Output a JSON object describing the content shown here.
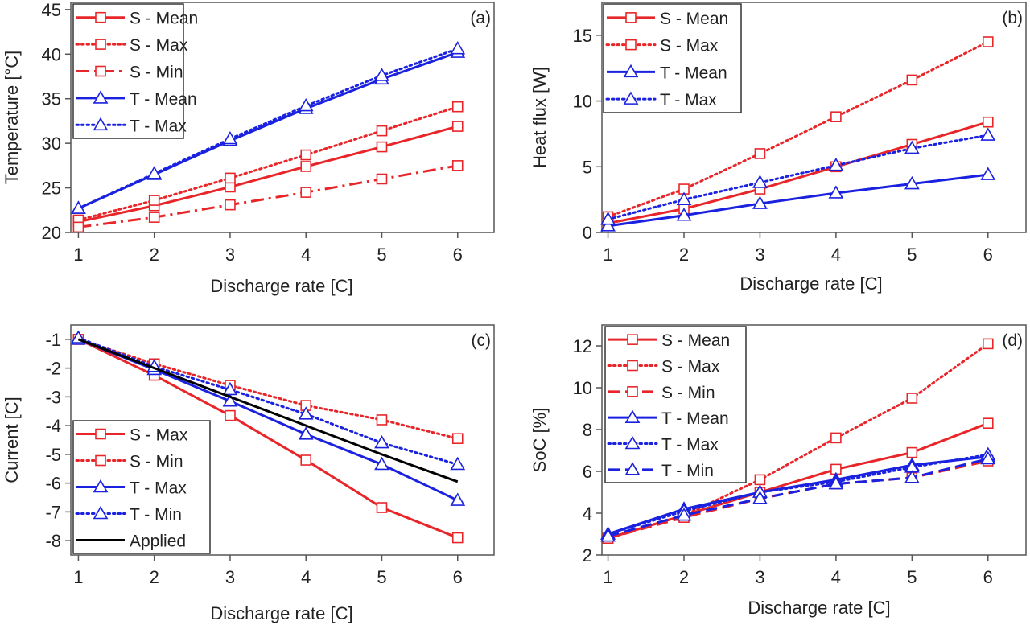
{
  "colors": {
    "S": "#e8262a",
    "T": "#1a22e0",
    "Applied": "#000000"
  },
  "chart_data": [
    {
      "type": "line",
      "panel_label": "(a)",
      "xlabel": "Discharge rate [C]",
      "ylabel": "Temperature [°C]",
      "xlim": [
        0.9,
        6.48
      ],
      "ylim": [
        20,
        45.8
      ],
      "xticks": [
        1,
        2,
        3,
        4,
        5,
        6
      ],
      "yticks": [
        20,
        25,
        30,
        35,
        40,
        45
      ],
      "grid": false,
      "legend": "top-left",
      "x": [
        1,
        2,
        3,
        4,
        5,
        6
      ],
      "series": [
        {
          "name": "S - Mean",
          "group": "S",
          "style": "solid",
          "marker": "square",
          "values": [
            21.2,
            23.0,
            25.1,
            27.4,
            29.6,
            31.9
          ]
        },
        {
          "name": "S - Max",
          "group": "S",
          "style": "dotted",
          "marker": "square",
          "values": [
            21.4,
            23.6,
            26.1,
            28.7,
            31.4,
            34.1
          ]
        },
        {
          "name": "S - Min",
          "group": "S",
          "style": "dashdot",
          "marker": "square",
          "values": [
            20.6,
            21.7,
            23.1,
            24.5,
            26.0,
            27.5
          ]
        },
        {
          "name": "T - Mean",
          "group": "T",
          "style": "solid",
          "marker": "triangle",
          "values": [
            22.7,
            26.5,
            30.3,
            33.9,
            37.2,
            40.2
          ]
        },
        {
          "name": "T - Max",
          "group": "T",
          "style": "dotted",
          "marker": "triangle",
          "values": [
            22.7,
            26.6,
            30.5,
            34.2,
            37.6,
            40.6
          ]
        }
      ]
    },
    {
      "type": "line",
      "panel_label": "(b)",
      "xlabel": "Discharge rate [C]",
      "ylabel": "Heat flux [W]",
      "xlim": [
        0.92,
        6.5
      ],
      "ylim": [
        0,
        17.5
      ],
      "xticks": [
        1,
        2,
        3,
        4,
        5,
        6
      ],
      "yticks": [
        0,
        5,
        10,
        15
      ],
      "grid": false,
      "legend": "top-left",
      "x": [
        1,
        2,
        3,
        4,
        5,
        6
      ],
      "series": [
        {
          "name": "S - Mean",
          "group": "S",
          "style": "solid",
          "marker": "square",
          "values": [
            0.7,
            1.8,
            3.3,
            5.0,
            6.7,
            8.4
          ]
        },
        {
          "name": "S - Max",
          "group": "S",
          "style": "dotted",
          "marker": "square",
          "values": [
            1.2,
            3.3,
            6.0,
            8.8,
            11.6,
            14.5
          ]
        },
        {
          "name": "T - Mean",
          "group": "T",
          "style": "solid",
          "marker": "triangle",
          "values": [
            0.5,
            1.3,
            2.2,
            3.0,
            3.7,
            4.4
          ]
        },
        {
          "name": "T - Max",
          "group": "T",
          "style": "dotted",
          "marker": "triangle",
          "values": [
            1.0,
            2.5,
            3.8,
            5.1,
            6.4,
            7.4
          ]
        }
      ]
    },
    {
      "type": "line",
      "panel_label": "(c)",
      "xlabel": "Discharge rate [C]",
      "ylabel": "Current [C]",
      "xlim": [
        0.9,
        6.48
      ],
      "ylim": [
        -8.5,
        -0.5
      ],
      "xticks": [
        1,
        2,
        3,
        4,
        5,
        6
      ],
      "yticks": [
        -1,
        -2,
        -3,
        -4,
        -5,
        -6,
        -7,
        -8
      ],
      "grid": false,
      "legend": "bottom-left",
      "x": [
        1,
        2,
        3,
        4,
        5,
        6
      ],
      "series": [
        {
          "name": "S - Max",
          "group": "S",
          "style": "solid",
          "marker": "square",
          "values": [
            -1.0,
            -2.25,
            -3.65,
            -5.2,
            -6.85,
            -7.9
          ]
        },
        {
          "name": "S - Min",
          "group": "S",
          "style": "dotted",
          "marker": "square",
          "values": [
            -1.0,
            -1.85,
            -2.6,
            -3.3,
            -3.8,
            -4.45
          ]
        },
        {
          "name": "T - Max",
          "group": "T",
          "style": "solid",
          "marker": "triangle",
          "values": [
            -1.0,
            -2.05,
            -3.15,
            -4.3,
            -5.35,
            -6.6
          ]
        },
        {
          "name": "T - Min",
          "group": "T",
          "style": "dotted",
          "marker": "triangle",
          "values": [
            -0.95,
            -1.95,
            -2.75,
            -3.6,
            -4.6,
            -5.35
          ]
        },
        {
          "name": "Applied",
          "group": "Applied",
          "style": "solid",
          "marker": "none",
          "values": [
            -1,
            -2,
            -3,
            -4,
            -5,
            -5.95
          ]
        }
      ]
    },
    {
      "type": "line",
      "panel_label": "(d)",
      "xlabel": "Discharge rate [C]",
      "ylabel": "SoC [%]",
      "xlim": [
        0.92,
        6.5
      ],
      "ylim": [
        2,
        13
      ],
      "xticks": [
        1,
        2,
        3,
        4,
        5,
        6
      ],
      "yticks": [
        2,
        4,
        6,
        8,
        10,
        12
      ],
      "grid": false,
      "legend": "top-left",
      "x": [
        1,
        2,
        3,
        4,
        5,
        6
      ],
      "series": [
        {
          "name": "S - Mean",
          "group": "S",
          "style": "solid",
          "marker": "square",
          "values": [
            2.8,
            3.9,
            5.0,
            6.1,
            6.9,
            8.3
          ]
        },
        {
          "name": "S - Max",
          "group": "S",
          "style": "dotted",
          "marker": "square",
          "values": [
            2.8,
            3.9,
            5.6,
            7.6,
            9.5,
            12.1
          ]
        },
        {
          "name": "S - Min",
          "group": "S",
          "style": "dashed",
          "marker": "square",
          "values": [
            2.8,
            3.8,
            4.7,
            5.4,
            5.7,
            6.5
          ]
        },
        {
          "name": "T - Mean",
          "group": "T",
          "style": "solid",
          "marker": "triangle",
          "values": [
            3.0,
            4.2,
            5.0,
            5.6,
            6.3,
            6.7
          ]
        },
        {
          "name": "T - Max",
          "group": "T",
          "style": "dotted",
          "marker": "triangle",
          "values": [
            3.0,
            4.1,
            5.0,
            5.5,
            6.2,
            6.8
          ]
        },
        {
          "name": "T - Min",
          "group": "T",
          "style": "dashed",
          "marker": "triangle",
          "values": [
            2.9,
            3.9,
            4.7,
            5.4,
            5.7,
            6.6
          ]
        }
      ]
    }
  ]
}
